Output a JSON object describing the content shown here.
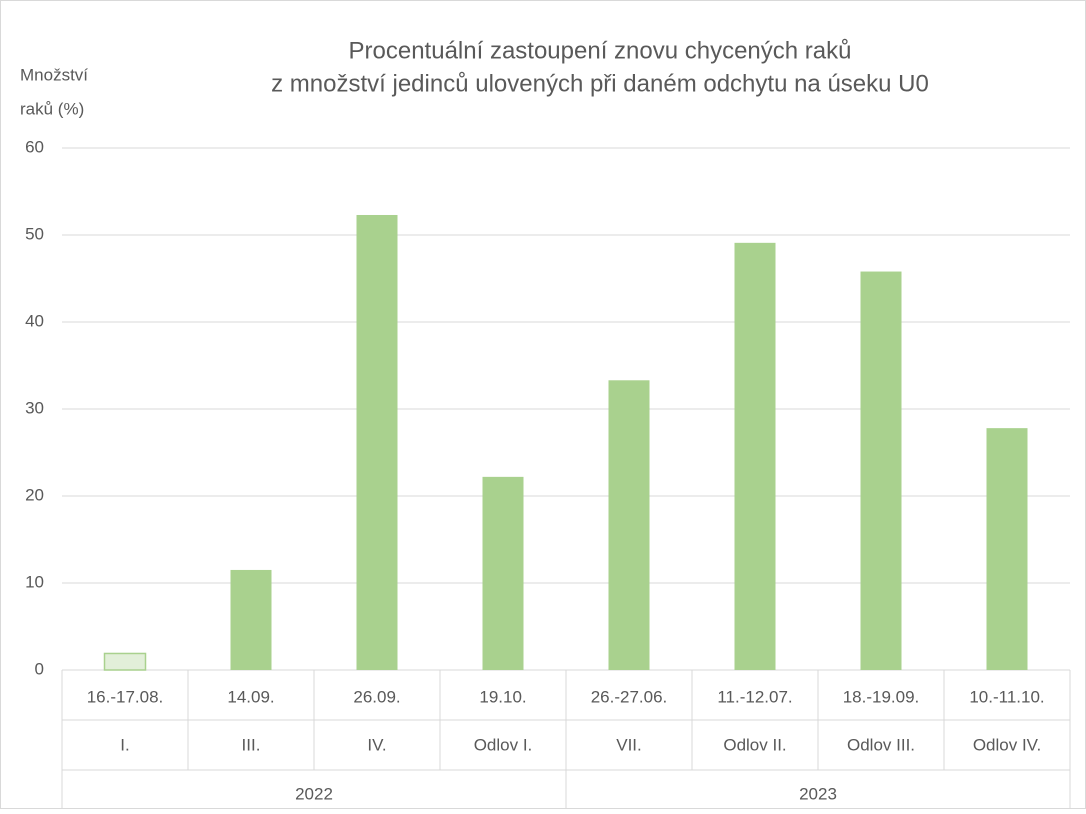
{
  "chart_data": {
    "type": "bar",
    "title": [
      "Procentuální zastoupení znovu chycených raků",
      "z množství jedinců ulovených při daném odchytu na úseku U0"
    ],
    "ylabel": [
      "Množství",
      "raků (%)"
    ],
    "categories": [
      "16.-17.08.",
      "14.09.",
      "26.09.",
      "19.10.",
      "26.-27.06.",
      "11.-12.07.",
      "18.-19.09.",
      "10.-11.10."
    ],
    "sublabels": [
      "I.",
      "III.",
      "IV.",
      "Odlov I.",
      "VII.",
      "Odlov II.",
      "Odlov III.",
      "Odlov IV."
    ],
    "years": [
      "2022",
      "2022",
      "2022",
      "2022",
      "2023",
      "2023",
      "2023",
      "2023"
    ],
    "values": [
      1.9,
      11.5,
      52.3,
      22.2,
      33.3,
      49.1,
      45.8,
      27.8
    ],
    "colors": [
      "#e2efd9",
      "#a9d18e",
      "#a9d18e",
      "#a9d18e",
      "#a9d18e",
      "#a9d18e",
      "#a9d18e",
      "#a9d18e"
    ],
    "ylim": [
      0,
      60
    ],
    "yticks": [
      0,
      10,
      20,
      30,
      40,
      50,
      60
    ],
    "grid": true
  }
}
